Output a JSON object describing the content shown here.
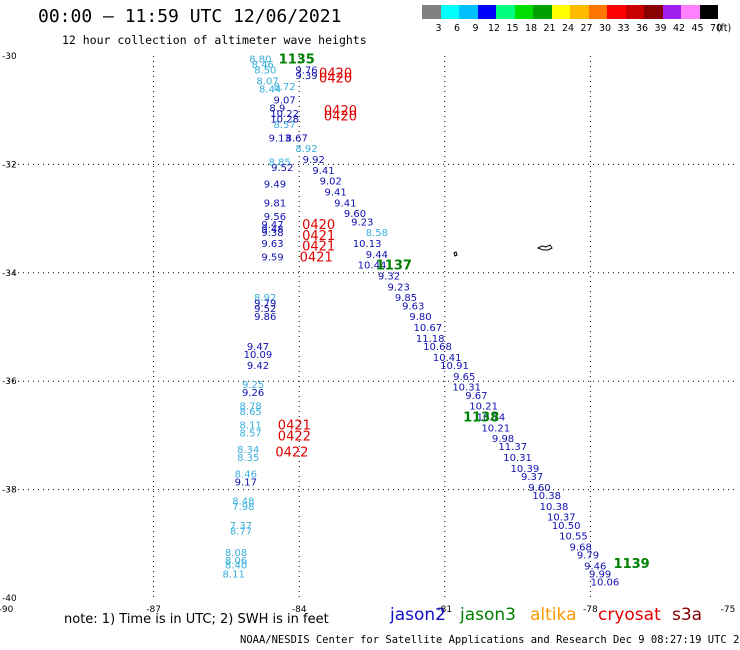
{
  "title": "00:00 – 11:59 UTC 12/06/2021",
  "subtitle": "12 hour collection of altimeter wave heights",
  "scale": {
    "unit": "(ft)",
    "colors": [
      "#808080",
      "#00ffff",
      "#00bfff",
      "#0000ff",
      "#00ff80",
      "#00dd00",
      "#00a000",
      "#ffff00",
      "#ffbb00",
      "#ff7700",
      "#ff0000",
      "#c80000",
      "#8b0000",
      "#a020f0",
      "#ff80ff",
      "#000000"
    ],
    "labels": [
      "3",
      "6",
      "9",
      "12",
      "15",
      "18",
      "21",
      "24",
      "27",
      "30",
      "33",
      "36",
      "39",
      "42",
      "45",
      "70"
    ]
  },
  "axes": {
    "x_ticks": [
      "-90",
      "-87",
      "-84",
      "-81",
      "-78",
      "-75"
    ],
    "y_ticks": [
      "-30",
      "-32",
      "-34",
      "-36",
      "-38",
      "-40"
    ]
  },
  "note": "note:  1) Time is in UTC;  2) SWH is in feet",
  "satellites": [
    {
      "name": "jason2",
      "color": "#1010c8"
    },
    {
      "name": "jason3",
      "color": "#008000"
    },
    {
      "name": "altika",
      "color": "#ff9900"
    },
    {
      "name": "cryosat",
      "color": "#e00000"
    },
    {
      "name": "s3a",
      "color": "#800000"
    }
  ],
  "credit": "NOAA/NESDIS Center for Satellite Applications and Research   Dec  9 08:27:19 UTC 2021",
  "map_data": {
    "lon_range": [
      -90,
      -75
    ],
    "lat_range": [
      -40,
      -30
    ],
    "time_labels": [
      {
        "text": "1135",
        "lon": -84.05,
        "lat": -30.05,
        "color": "#008000"
      },
      {
        "text": "1137",
        "lon": -82.05,
        "lat": -33.85,
        "color": "#008000"
      },
      {
        "text": "1138",
        "lon": -80.25,
        "lat": -36.65,
        "color": "#008000"
      },
      {
        "text": "1139",
        "lon": -77.15,
        "lat": -39.35,
        "color": "#008000"
      },
      {
        "text": "0420",
        "lon": -83.25,
        "lat": -30.3,
        "color": "#e00000"
      },
      {
        "text": "0420",
        "lon": -83.25,
        "lat": -30.4,
        "color": "#e00000"
      },
      {
        "text": "0420",
        "lon": -83.15,
        "lat": -31.0,
        "color": "#e00000"
      },
      {
        "text": "0420",
        "lon": -83.15,
        "lat": -31.1,
        "color": "#e00000"
      },
      {
        "text": "0420",
        "lon": -83.6,
        "lat": -33.1,
        "color": "#e00000"
      },
      {
        "text": "0421",
        "lon": -83.6,
        "lat": -33.3,
        "color": "#e00000"
      },
      {
        "text": "0421",
        "lon": -83.6,
        "lat": -33.5,
        "color": "#e00000"
      },
      {
        "text": "0421",
        "lon": -83.65,
        "lat": -33.7,
        "color": "#e00000"
      },
      {
        "text": "0421",
        "lon": -84.1,
        "lat": -36.8,
        "color": "#e00000"
      },
      {
        "text": "0422",
        "lon": -84.1,
        "lat": -37.0,
        "color": "#e00000"
      },
      {
        "text": "0422",
        "lon": -84.15,
        "lat": -37.3,
        "color": "#e00000"
      }
    ],
    "values": [
      {
        "v": "8.80",
        "lon": -84.8,
        "lat": -30.05,
        "c": "#38b0dc"
      },
      {
        "v": "8.46",
        "lon": -84.75,
        "lat": -30.15,
        "c": "#38b0dc"
      },
      {
        "v": "8.50",
        "lon": -84.7,
        "lat": -30.25,
        "c": "#38b0dc"
      },
      {
        "v": "8.07",
        "lon": -84.65,
        "lat": -30.45,
        "c": "#38b0dc"
      },
      {
        "v": "8.44",
        "lon": -84.6,
        "lat": -30.6,
        "c": "#38b0dc"
      },
      {
        "v": "8.72",
        "lon": -84.3,
        "lat": -30.55,
        "c": "#38b0dc"
      },
      {
        "v": "8.57",
        "lon": -84.3,
        "lat": -31.25,
        "c": "#38b0dc"
      },
      {
        "v": "9.76",
        "lon": -83.85,
        "lat": -30.25,
        "c": "#1010b0"
      },
      {
        "v": "9.39",
        "lon": -83.85,
        "lat": -30.35,
        "c": "#1010b0"
      },
      {
        "v": "9.07",
        "lon": -84.3,
        "lat": -30.8,
        "c": "#1010b0"
      },
      {
        "v": "8.9",
        "lon": -84.45,
        "lat": -30.95,
        "c": "#1010b0"
      },
      {
        "v": "10.22",
        "lon": -84.3,
        "lat": -31.05,
        "c": "#1010b0"
      },
      {
        "v": "10.28",
        "lon": -84.3,
        "lat": -31.15,
        "c": "#1010b0"
      },
      {
        "v": "9.13",
        "lon": -84.4,
        "lat": -31.5,
        "c": "#1010b0"
      },
      {
        "v": "8.67",
        "lon": -84.05,
        "lat": -31.5,
        "c": "#1010b0"
      },
      {
        "v": "8.92",
        "lon": -83.85,
        "lat": -31.7,
        "c": "#38b0dc"
      },
      {
        "v": "8.85",
        "lon": -84.4,
        "lat": -31.95,
        "c": "#38b0dc"
      },
      {
        "v": "9.92",
        "lon": -83.7,
        "lat": -31.9,
        "c": "#1010b0"
      },
      {
        "v": "9.52",
        "lon": -84.35,
        "lat": -32.05,
        "c": "#1010b0"
      },
      {
        "v": "9.41",
        "lon": -83.5,
        "lat": -32.1,
        "c": "#1010b0"
      },
      {
        "v": "9.49",
        "lon": -84.5,
        "lat": -32.35,
        "c": "#1010b0"
      },
      {
        "v": "9.02",
        "lon": -83.35,
        "lat": -32.3,
        "c": "#1010b0"
      },
      {
        "v": "9.41",
        "lon": -83.25,
        "lat": -32.5,
        "c": "#1010b0"
      },
      {
        "v": "9.81",
        "lon": -84.5,
        "lat": -32.7,
        "c": "#1010b0"
      },
      {
        "v": "9.41",
        "lon": -83.05,
        "lat": -32.7,
        "c": "#1010b0"
      },
      {
        "v": "9.60",
        "lon": -82.85,
        "lat": -32.9,
        "c": "#1010b0"
      },
      {
        "v": "9.56",
        "lon": -84.5,
        "lat": -32.95,
        "c": "#1010b0"
      },
      {
        "v": "9.23",
        "lon": -82.7,
        "lat": -33.05,
        "c": "#1010b0"
      },
      {
        "v": "9.47",
        "lon": -84.55,
        "lat": -33.1,
        "c": "#1010b0"
      },
      {
        "v": "9.48",
        "lon": -84.55,
        "lat": -33.18,
        "c": "#1010b0"
      },
      {
        "v": "9.38",
        "lon": -84.55,
        "lat": -33.25,
        "c": "#1010b0"
      },
      {
        "v": "8.58",
        "lon": -82.4,
        "lat": -33.25,
        "c": "#38b0dc"
      },
      {
        "v": "10.13",
        "lon": -82.6,
        "lat": -33.45,
        "c": "#1010b0"
      },
      {
        "v": "9.63",
        "lon": -84.55,
        "lat": -33.45,
        "c": "#1010b0"
      },
      {
        "v": "9.44",
        "lon": -82.4,
        "lat": -33.65,
        "c": "#1010b0"
      },
      {
        "v": "9.59",
        "lon": -84.55,
        "lat": -33.7,
        "c": "#1010b0"
      },
      {
        "v": "10.44",
        "lon": -82.5,
        "lat": -33.85,
        "c": "#1010b0"
      },
      {
        "v": "9.32",
        "lon": -82.15,
        "lat": -34.05,
        "c": "#1010b0"
      },
      {
        "v": "9.23",
        "lon": -81.95,
        "lat": -34.25,
        "c": "#1010b0"
      },
      {
        "v": "8.92",
        "lon": -84.7,
        "lat": -34.45,
        "c": "#38b0dc"
      },
      {
        "v": "9.79",
        "lon": -84.7,
        "lat": -34.55,
        "c": "#1010b0"
      },
      {
        "v": "9.85",
        "lon": -81.8,
        "lat": -34.45,
        "c": "#1010b0"
      },
      {
        "v": "9.52",
        "lon": -84.7,
        "lat": -34.65,
        "c": "#1010b0"
      },
      {
        "v": "9.63",
        "lon": -81.65,
        "lat": -34.6,
        "c": "#1010b0"
      },
      {
        "v": "9.86",
        "lon": -84.7,
        "lat": -34.8,
        "c": "#1010b0"
      },
      {
        "v": "9.80",
        "lon": -81.5,
        "lat": -34.8,
        "c": "#1010b0"
      },
      {
        "v": "10.67",
        "lon": -81.35,
        "lat": -35.0,
        "c": "#1010b0"
      },
      {
        "v": "11.18",
        "lon": -81.3,
        "lat": -35.2,
        "c": "#1010b0"
      },
      {
        "v": "9.47",
        "lon": -84.85,
        "lat": -35.35,
        "c": "#1010b0"
      },
      {
        "v": "10.68",
        "lon": -81.15,
        "lat": -35.35,
        "c": "#1010b0"
      },
      {
        "v": "10.09",
        "lon": -84.85,
        "lat": -35.5,
        "c": "#1010b0"
      },
      {
        "v": "10.41",
        "lon": -80.95,
        "lat": -35.55,
        "c": "#1010b0"
      },
      {
        "v": "9.42",
        "lon": -84.85,
        "lat": -35.7,
        "c": "#1010b0"
      },
      {
        "v": "10.91",
        "lon": -80.8,
        "lat": -35.7,
        "c": "#1010b0"
      },
      {
        "v": "9.65",
        "lon": -80.6,
        "lat": -35.9,
        "c": "#1010b0"
      },
      {
        "v": "9.25",
        "lon": -84.95,
        "lat": -36.05,
        "c": "#38b0dc"
      },
      {
        "v": "10.31",
        "lon": -80.55,
        "lat": -36.1,
        "c": "#1010b0"
      },
      {
        "v": "9.26",
        "lon": -84.95,
        "lat": -36.2,
        "c": "#1010b0"
      },
      {
        "v": "9.67",
        "lon": -80.35,
        "lat": -36.25,
        "c": "#1010b0"
      },
      {
        "v": "8.78",
        "lon": -85.0,
        "lat": -36.45,
        "c": "#38b0dc"
      },
      {
        "v": "8.65",
        "lon": -85.0,
        "lat": -36.55,
        "c": "#38b0dc"
      },
      {
        "v": "10.21",
        "lon": -80.2,
        "lat": -36.45,
        "c": "#1010b0"
      },
      {
        "v": "10.74",
        "lon": -80.05,
        "lat": -36.65,
        "c": "#1010b0"
      },
      {
        "v": "8.11",
        "lon": -85.0,
        "lat": -36.8,
        "c": "#38b0dc"
      },
      {
        "v": "10.21",
        "lon": -79.95,
        "lat": -36.85,
        "c": "#1010b0"
      },
      {
        "v": "8.57",
        "lon": -85.0,
        "lat": -36.95,
        "c": "#38b0dc"
      },
      {
        "v": "9.98",
        "lon": -79.8,
        "lat": -37.05,
        "c": "#1010b0"
      },
      {
        "v": "8.34",
        "lon": -85.05,
        "lat": -37.25,
        "c": "#38b0dc"
      },
      {
        "v": "11.37",
        "lon": -79.6,
        "lat": -37.2,
        "c": "#1010b0"
      },
      {
        "v": "8.35",
        "lon": -85.05,
        "lat": -37.4,
        "c": "#38b0dc"
      },
      {
        "v": "10.31",
        "lon": -79.5,
        "lat": -37.4,
        "c": "#1010b0"
      },
      {
        "v": "10.39",
        "lon": -79.35,
        "lat": -37.6,
        "c": "#1010b0"
      },
      {
        "v": "8.46",
        "lon": -85.1,
        "lat": -37.7,
        "c": "#38b0dc"
      },
      {
        "v": "9.37",
        "lon": -79.2,
        "lat": -37.75,
        "c": "#1010b0"
      },
      {
        "v": "9.17",
        "lon": -85.1,
        "lat": -37.85,
        "c": "#1010b0"
      },
      {
        "v": "9.60",
        "lon": -79.05,
        "lat": -37.95,
        "c": "#1010b0"
      },
      {
        "v": "10.38",
        "lon": -78.9,
        "lat": -38.1,
        "c": "#1010b0"
      },
      {
        "v": "8.48",
        "lon": -85.15,
        "lat": -38.2,
        "c": "#38b0dc"
      },
      {
        "v": "7.98",
        "lon": -85.15,
        "lat": -38.3,
        "c": "#38b0dc"
      },
      {
        "v": "10.38",
        "lon": -78.75,
        "lat": -38.3,
        "c": "#1010b0"
      },
      {
        "v": "10.37",
        "lon": -78.6,
        "lat": -38.5,
        "c": "#1010b0"
      },
      {
        "v": "7.37",
        "lon": -85.2,
        "lat": -38.65,
        "c": "#38b0dc"
      },
      {
        "v": "10.50",
        "lon": -78.5,
        "lat": -38.65,
        "c": "#1010b0"
      },
      {
        "v": "8.77",
        "lon": -85.2,
        "lat": -38.75,
        "c": "#38b0dc"
      },
      {
        "v": "10.55",
        "lon": -78.35,
        "lat": -38.85,
        "c": "#1010b0"
      },
      {
        "v": "9.68",
        "lon": -78.2,
        "lat": -39.05,
        "c": "#1010b0"
      },
      {
        "v": "8.08",
        "lon": -85.3,
        "lat": -39.15,
        "c": "#38b0dc"
      },
      {
        "v": "9.79",
        "lon": -78.05,
        "lat": -39.2,
        "c": "#1010b0"
      },
      {
        "v": "8.06",
        "lon": -85.3,
        "lat": -39.3,
        "c": "#38b0dc"
      },
      {
        "v": "8.40",
        "lon": -85.3,
        "lat": -39.38,
        "c": "#38b0dc"
      },
      {
        "v": "9.46",
        "lon": -77.9,
        "lat": -39.4,
        "c": "#1010b0"
      },
      {
        "v": "8.11",
        "lon": -85.35,
        "lat": -39.55,
        "c": "#38b0dc"
      },
      {
        "v": "9.99",
        "lon": -77.8,
        "lat": -39.55,
        "c": "#1010b0"
      },
      {
        "v": "10.06",
        "lon": -77.7,
        "lat": -39.7,
        "c": "#1010b0"
      }
    ]
  }
}
